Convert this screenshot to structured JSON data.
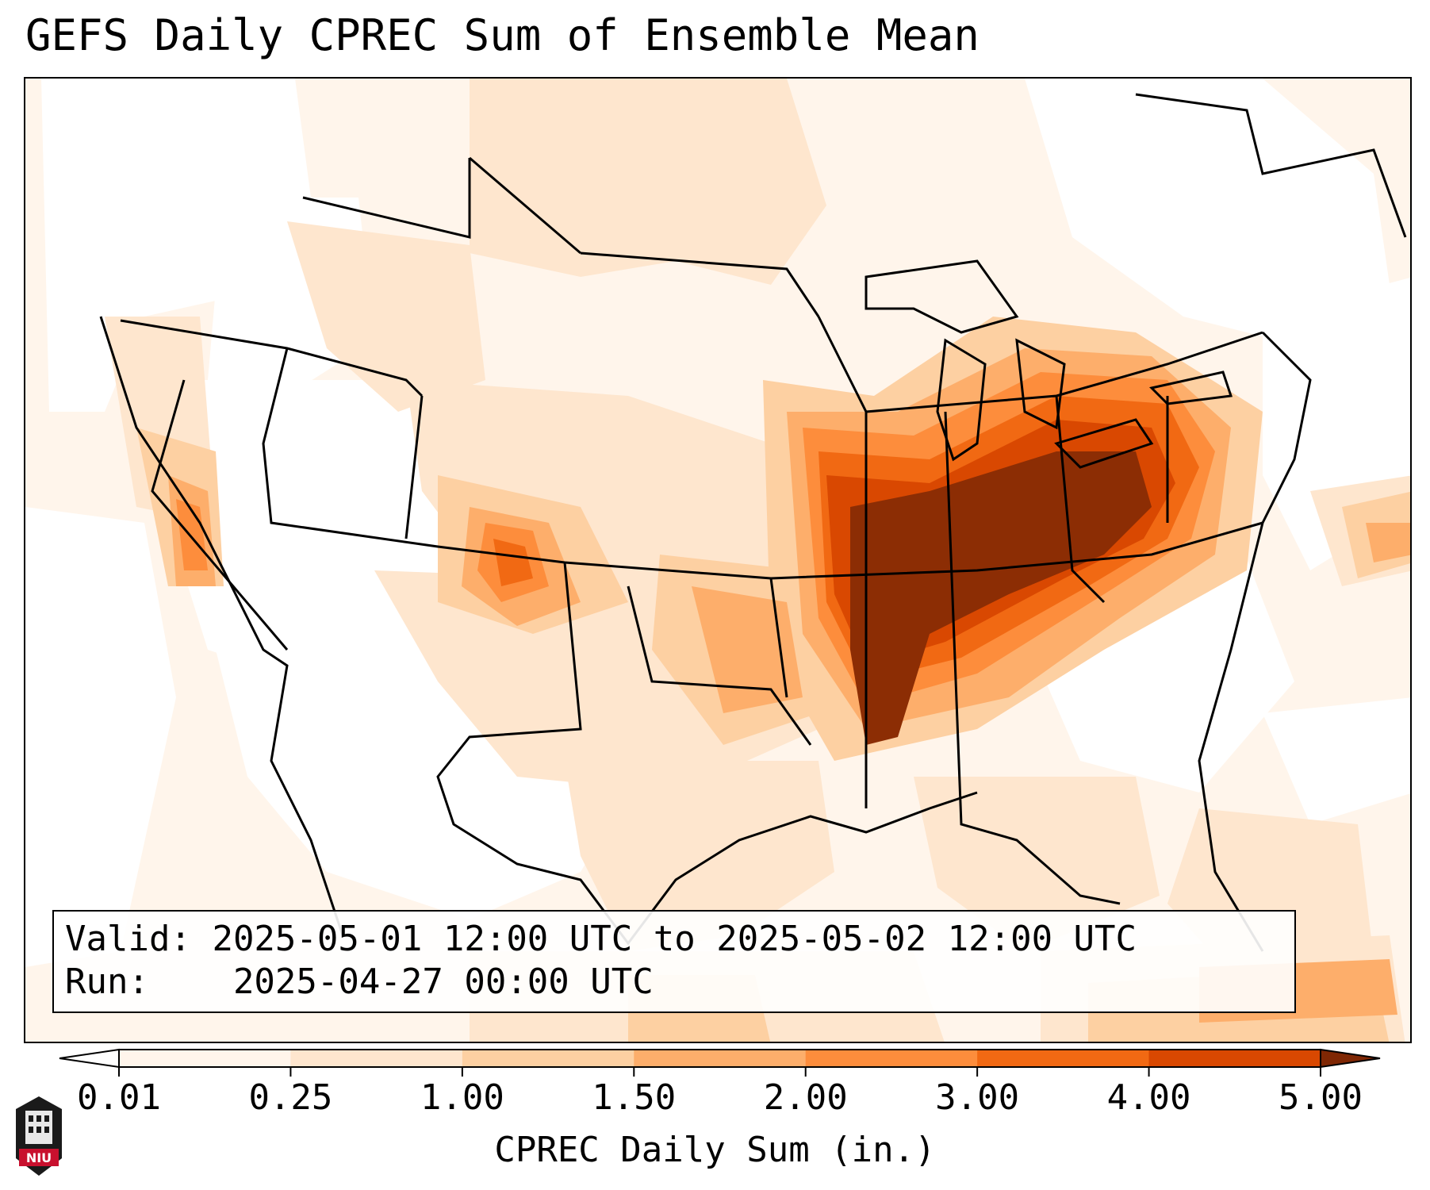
{
  "title": "GEFS Daily CPREC Sum of Ensemble Mean",
  "info": {
    "valid_label": "Valid:",
    "valid_value": "2025-05-01 12:00 UTC to 2025-05-02 12:00 UTC",
    "run_label": "Run:",
    "run_value": "2025-04-27 00:00 UTC"
  },
  "colorbar": {
    "label": "CPREC Daily Sum (in.)",
    "ticks": [
      "0.01",
      "0.25",
      "1.00",
      "1.50",
      "2.00",
      "3.00",
      "4.00",
      "5.00"
    ],
    "colors": [
      "#fff5eb",
      "#fee6ce",
      "#fdd0a2",
      "#fdae6b",
      "#fd8d3c",
      "#f16913",
      "#d94801",
      "#8c2d04"
    ],
    "under_color": "#ffffff",
    "over_color": "#7f2704"
  },
  "logo": {
    "text": "NIU"
  },
  "colors": {
    "lightest": "#fff5eb",
    "light": "#fee6ce",
    "medium_light": "#fdd0a2",
    "medium": "#fdae6b",
    "orange": "#fd8d3c",
    "dark_orange": "#f16913",
    "red_orange": "#d94801",
    "brown": "#8c2d04"
  }
}
